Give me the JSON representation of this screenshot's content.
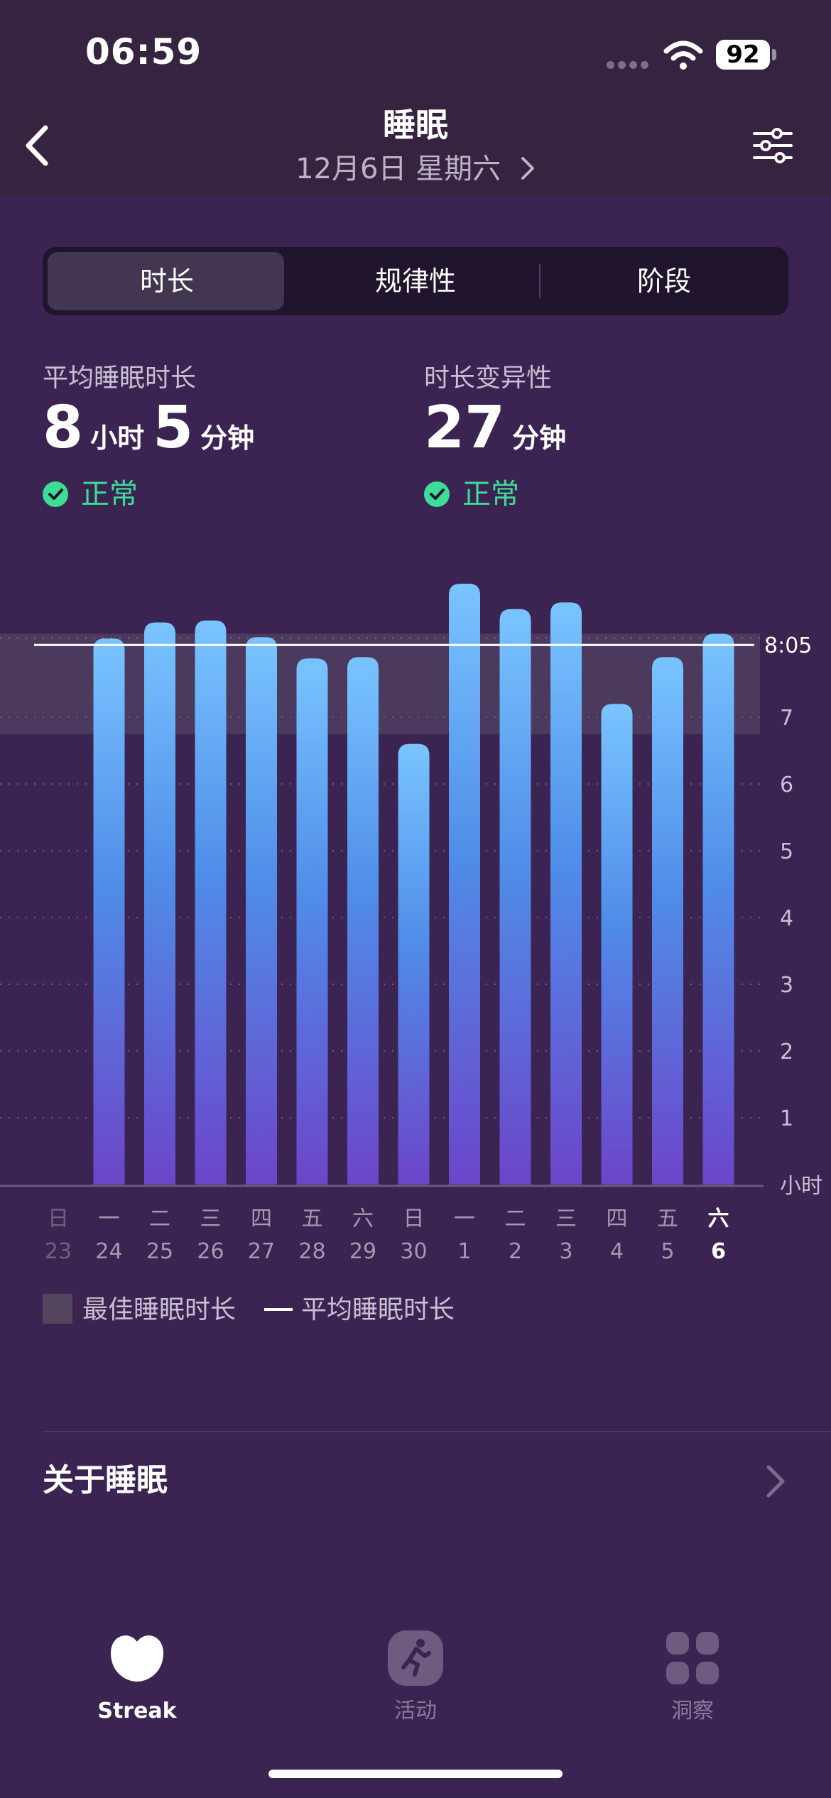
{
  "status_bar": {
    "time": "06:59",
    "battery": "92"
  },
  "header": {
    "title": "睡眠",
    "subtitle": "12月6日 星期六"
  },
  "segments": [
    {
      "label": "时长",
      "active": true
    },
    {
      "label": "规律性",
      "active": false
    },
    {
      "label": "阶段",
      "active": false
    }
  ],
  "stats": {
    "avg": {
      "label": "平均睡眠时长",
      "hours": "8",
      "hours_unit": "小时",
      "minutes": "5",
      "minutes_unit": "分钟",
      "status": "正常"
    },
    "variability": {
      "label": "时长变异性",
      "minutes": "27",
      "minutes_unit": "分钟",
      "status": "正常"
    }
  },
  "chart_data": {
    "type": "bar",
    "categories": [
      {
        "weekday": "日",
        "day": "23",
        "value": null
      },
      {
        "weekday": "一",
        "day": "24",
        "value": 8.18
      },
      {
        "weekday": "二",
        "day": "25",
        "value": 8.42
      },
      {
        "weekday": "三",
        "day": "26",
        "value": 8.45
      },
      {
        "weekday": "四",
        "day": "27",
        "value": 8.2
      },
      {
        "weekday": "五",
        "day": "28",
        "value": 7.88
      },
      {
        "weekday": "六",
        "day": "29",
        "value": 7.9
      },
      {
        "weekday": "日",
        "day": "30",
        "value": 6.6
      },
      {
        "weekday": "一",
        "day": "1",
        "value": 9.0
      },
      {
        "weekday": "二",
        "day": "2",
        "value": 8.62
      },
      {
        "weekday": "三",
        "day": "3",
        "value": 8.72
      },
      {
        "weekday": "四",
        "day": "4",
        "value": 7.2
      },
      {
        "weekday": "五",
        "day": "5",
        "value": 7.9
      },
      {
        "weekday": "六",
        "day": "6",
        "value": 8.25
      }
    ],
    "ylim": [
      0,
      9
    ],
    "y_ticks": [
      "1",
      "2",
      "3",
      "4",
      "5",
      "6",
      "7"
    ],
    "unit_label": "小时",
    "average_line": {
      "value": 8.083,
      "label": "8:05"
    },
    "optimal_band": [
      6.75,
      8.25
    ],
    "highlight_index": 13,
    "colors": {
      "bar_top": "#79c4ff",
      "bar_mid": "#4f8de8",
      "bar_bottom": "#6c45c9",
      "band": "#4c3a5e"
    }
  },
  "legend": {
    "band_label": "最佳睡眠时长",
    "line_label": "平均睡眠时长"
  },
  "about": {
    "label": "关于睡眠"
  },
  "tab_bar": [
    {
      "label": "Streak",
      "icon": "streak-icon",
      "active": true
    },
    {
      "label": "活动",
      "icon": "activity-icon",
      "active": false
    },
    {
      "label": "洞察",
      "icon": "insights-icon",
      "active": false
    }
  ]
}
